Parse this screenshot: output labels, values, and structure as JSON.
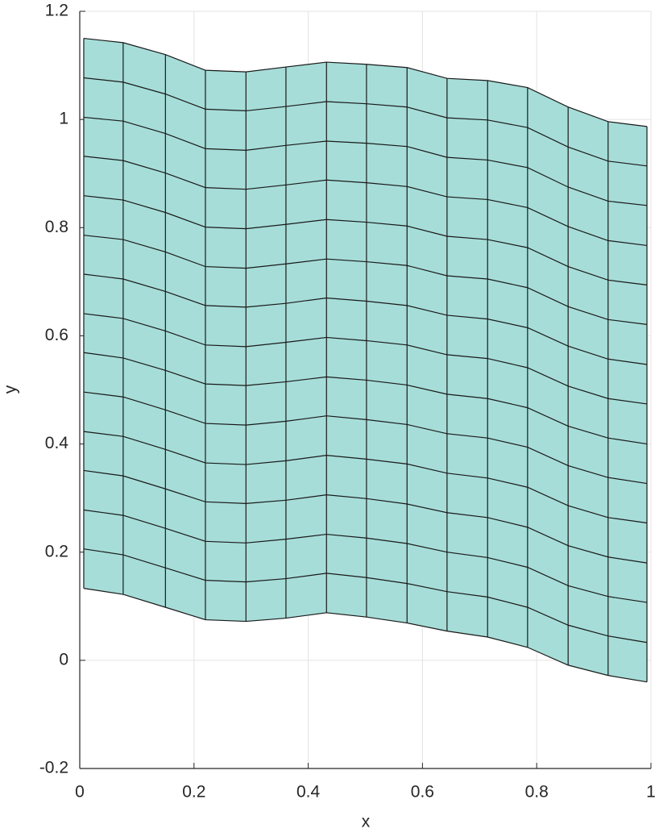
{
  "chart_data": {
    "type": "mesh",
    "xlabel": "x",
    "ylabel": "y",
    "x": [
      0.007,
      0.076,
      0.15,
      0.22,
      0.291,
      0.361,
      0.432,
      0.502,
      0.573,
      0.643,
      0.714,
      0.784,
      0.855,
      0.925,
      0.993
    ],
    "y": [
      [
        0.133,
        0.122,
        0.098,
        0.075,
        0.072,
        0.078,
        0.088,
        0.08,
        0.069,
        0.054,
        0.043,
        0.024,
        -0.009,
        -0.028,
        -0.04
      ],
      [
        0.206,
        0.195,
        0.171,
        0.148,
        0.145,
        0.151,
        0.161,
        0.153,
        0.142,
        0.127,
        0.117,
        0.098,
        0.065,
        0.045,
        0.033
      ],
      [
        0.278,
        0.268,
        0.244,
        0.22,
        0.217,
        0.224,
        0.233,
        0.226,
        0.216,
        0.2,
        0.19,
        0.172,
        0.138,
        0.118,
        0.107
      ],
      [
        0.351,
        0.341,
        0.317,
        0.293,
        0.29,
        0.296,
        0.306,
        0.299,
        0.289,
        0.273,
        0.264,
        0.246,
        0.212,
        0.191,
        0.18
      ],
      [
        0.423,
        0.414,
        0.39,
        0.365,
        0.362,
        0.369,
        0.379,
        0.372,
        0.363,
        0.346,
        0.337,
        0.32,
        0.286,
        0.264,
        0.254
      ],
      [
        0.496,
        0.487,
        0.463,
        0.438,
        0.435,
        0.442,
        0.452,
        0.445,
        0.436,
        0.419,
        0.411,
        0.394,
        0.36,
        0.338,
        0.327
      ],
      [
        0.569,
        0.559,
        0.536,
        0.511,
        0.508,
        0.515,
        0.524,
        0.518,
        0.509,
        0.492,
        0.484,
        0.467,
        0.433,
        0.411,
        0.4
      ],
      [
        0.641,
        0.632,
        0.609,
        0.583,
        0.58,
        0.588,
        0.597,
        0.591,
        0.583,
        0.565,
        0.558,
        0.541,
        0.507,
        0.484,
        0.474
      ],
      [
        0.714,
        0.705,
        0.682,
        0.656,
        0.653,
        0.66,
        0.67,
        0.664,
        0.656,
        0.638,
        0.631,
        0.615,
        0.581,
        0.557,
        0.547
      ],
      [
        0.786,
        0.778,
        0.755,
        0.728,
        0.725,
        0.733,
        0.742,
        0.737,
        0.73,
        0.711,
        0.705,
        0.689,
        0.654,
        0.63,
        0.621
      ],
      [
        0.859,
        0.851,
        0.828,
        0.801,
        0.798,
        0.806,
        0.815,
        0.81,
        0.803,
        0.784,
        0.778,
        0.763,
        0.728,
        0.703,
        0.694
      ],
      [
        0.932,
        0.924,
        0.901,
        0.874,
        0.871,
        0.879,
        0.888,
        0.883,
        0.876,
        0.857,
        0.852,
        0.837,
        0.802,
        0.776,
        0.767
      ],
      [
        1.004,
        0.997,
        0.974,
        0.946,
        0.943,
        0.952,
        0.96,
        0.956,
        0.95,
        0.93,
        0.925,
        0.911,
        0.875,
        0.849,
        0.841
      ],
      [
        1.077,
        1.069,
        1.047,
        1.019,
        1.016,
        1.024,
        1.033,
        1.029,
        1.023,
        1.003,
        0.999,
        0.985,
        0.949,
        0.923,
        0.914
      ],
      [
        1.15,
        1.142,
        1.12,
        1.091,
        1.088,
        1.097,
        1.106,
        1.102,
        1.096,
        1.076,
        1.072,
        1.059,
        1.023,
        0.996,
        0.987
      ]
    ],
    "color": "#a6ddd8",
    "edgecolor": "#1a1a1a",
    "xlim": [
      0,
      1
    ],
    "ylim": [
      -0.2,
      1.2
    ],
    "xticks": [
      0,
      0.2,
      0.4,
      0.6,
      0.8,
      1
    ],
    "yticks": [
      -0.2,
      0,
      0.2,
      0.4,
      0.6,
      0.8,
      1,
      1.2
    ],
    "grid": true
  }
}
